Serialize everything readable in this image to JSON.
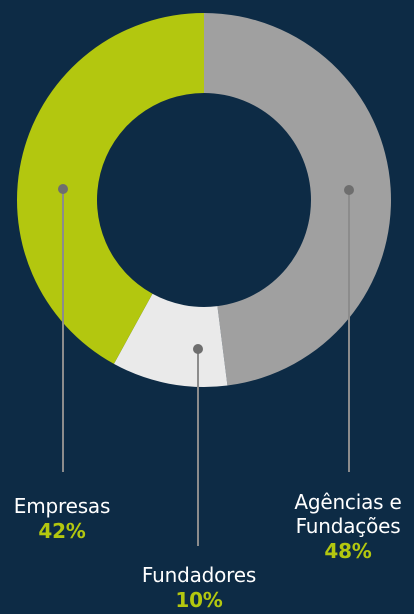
{
  "chart_data": {
    "type": "pie",
    "donut": true,
    "slices": [
      {
        "label": "Agências e Fundações",
        "label_lines": [
          "Agências e",
          "Fundações"
        ],
        "value": 48,
        "value_label": "48%",
        "color": "#a0a0a0"
      },
      {
        "label": "Fundadores",
        "label_lines": [
          "Fundadores"
        ],
        "value": 10,
        "value_label": "10%",
        "color": "#eaeaea"
      },
      {
        "label": "Empresas",
        "label_lines": [
          "Empresas"
        ],
        "value": 42,
        "value_label": "42%",
        "color": "#b3c70f"
      }
    ],
    "colors": {
      "background": "#0d2b45",
      "leader_line": "#8c8c8c",
      "label_text": "#ffffff",
      "percent_text": "#b3c70f"
    }
  }
}
